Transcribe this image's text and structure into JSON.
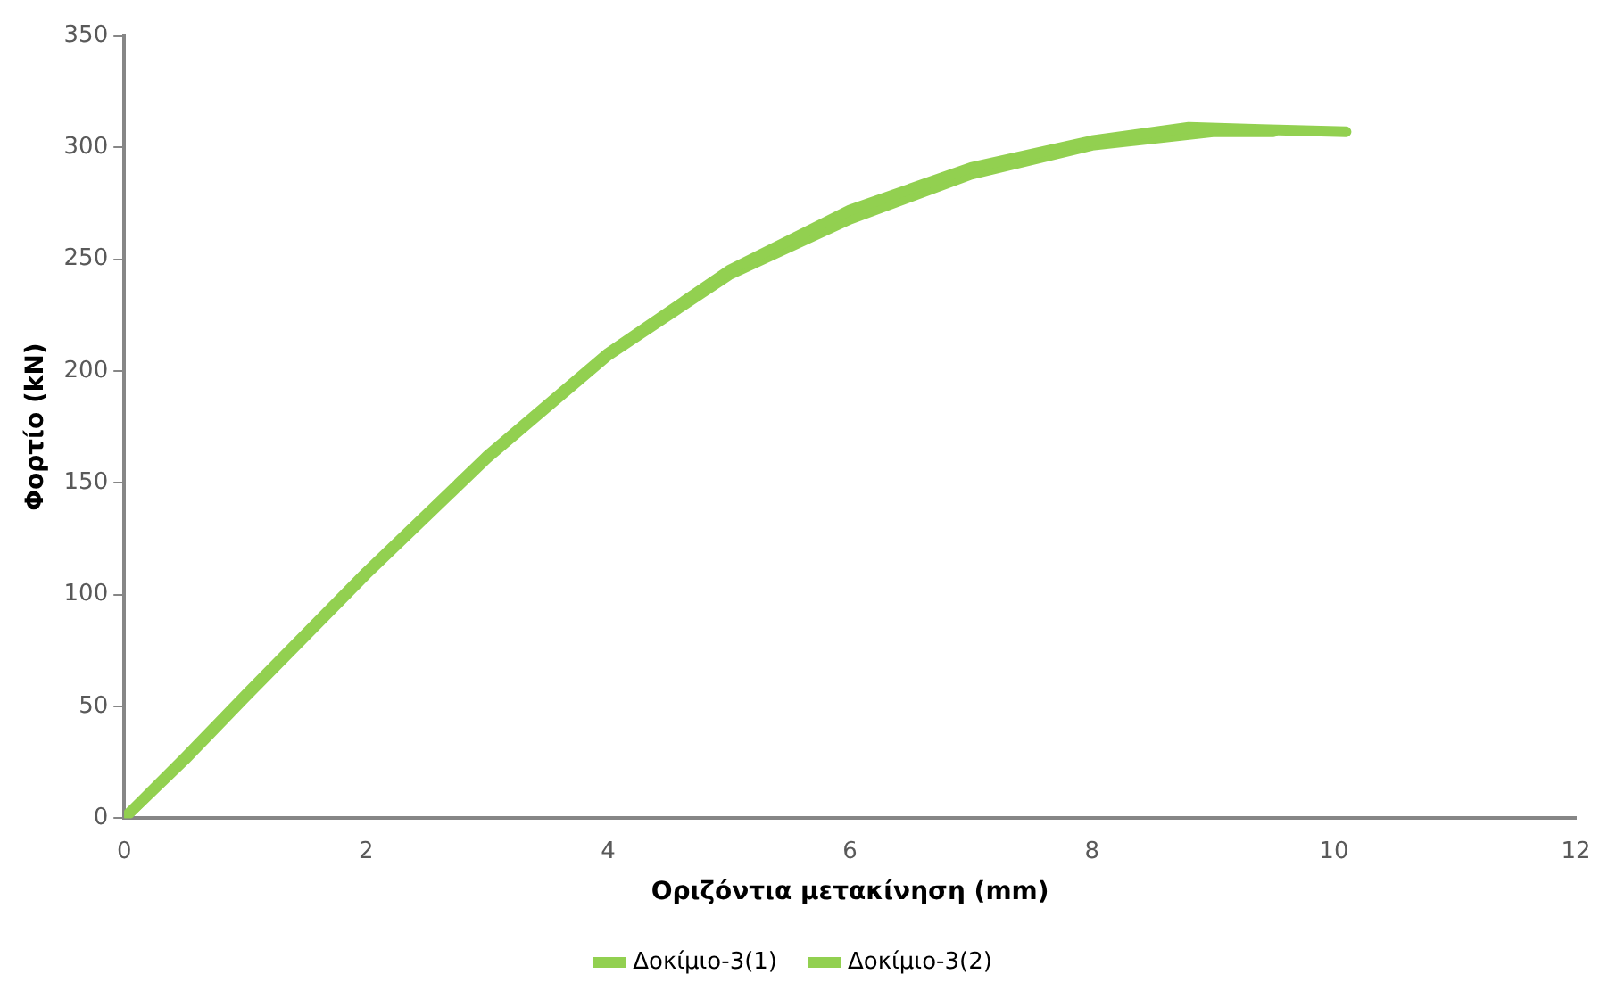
{
  "chart_data": {
    "type": "line",
    "xlabel": "Οριζόντια μετακίνηση (mm)",
    "ylabel": "Φορτίο (kN)",
    "xlim": [
      0,
      12
    ],
    "xticks": [
      0,
      2,
      4,
      6,
      8,
      10,
      12
    ],
    "ylim": [
      0,
      350
    ],
    "yticks": [
      0,
      50,
      100,
      150,
      200,
      250,
      300,
      350
    ],
    "grid": false,
    "legend": "bottom",
    "marker": "none",
    "line_style": "solid",
    "series": [
      {
        "name": "Δοκίμιο-3(1)",
        "color": "#92d050",
        "x": [
          0,
          0.5,
          1,
          2,
          3,
          4,
          5,
          6,
          7,
          8,
          8.8,
          9.4,
          10.1
        ],
        "values": [
          0,
          27,
          55,
          110,
          162,
          208,
          245,
          272,
          291,
          303,
          309,
          308,
          307
        ]
      },
      {
        "name": "Δοκίμιο-3(2)",
        "color": "#92d050",
        "x": [
          0,
          0.5,
          1,
          2,
          3,
          4,
          5,
          6,
          7,
          8,
          9,
          9.5
        ],
        "values": [
          0,
          26,
          54,
          109,
          161,
          207,
          243,
          268,
          288,
          301,
          307,
          307
        ]
      }
    ]
  }
}
